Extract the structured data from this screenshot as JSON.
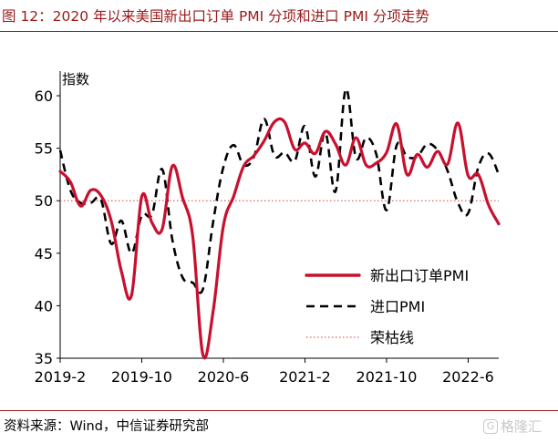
{
  "title": "图 12：2020 年以来美国新出口订单 PMI 分项和进口 PMI 分项走势",
  "source": "资料来源：Wind，中信证券研究部",
  "watermark": "格隆汇",
  "chart_data": {
    "type": "line",
    "ylabel": "指数",
    "ylim": [
      35,
      62
    ],
    "yticks": [
      35,
      40,
      45,
      50,
      55,
      60
    ],
    "xlim": [
      "2019-02",
      "2022-09"
    ],
    "xticks": [
      "2019-2",
      "2019-10",
      "2020-6",
      "2021-2",
      "2021-10",
      "2022-6"
    ],
    "grid": false,
    "legend_position": "right-middle",
    "colors": {
      "export": "#c8102e",
      "import": "#000000",
      "reference": "#e06060",
      "title": "#9b1a1a"
    },
    "series": [
      {
        "name": "新出口订单PMI",
        "style": "solid",
        "x": [
          "2019-02",
          "2019-03",
          "2019-04",
          "2019-05",
          "2019-06",
          "2019-07",
          "2019-08",
          "2019-09",
          "2019-10",
          "2019-11",
          "2019-12",
          "2020-01",
          "2020-02",
          "2020-03",
          "2020-04",
          "2020-05",
          "2020-06",
          "2020-07",
          "2020-08",
          "2020-09",
          "2020-10",
          "2020-11",
          "2020-12",
          "2021-01",
          "2021-02",
          "2021-03",
          "2021-04",
          "2021-05",
          "2021-06",
          "2021-07",
          "2021-08",
          "2021-09",
          "2021-10",
          "2021-11",
          "2021-12",
          "2022-01",
          "2022-02",
          "2022-03",
          "2022-04",
          "2022-05",
          "2022-06",
          "2022-07",
          "2022-08",
          "2022-09"
        ],
        "values": [
          52.8,
          51.8,
          49.5,
          51.0,
          50.5,
          48.1,
          43.3,
          41.0,
          50.4,
          47.9,
          47.3,
          53.3,
          50.3,
          46.6,
          35.3,
          39.5,
          47.6,
          50.4,
          53.3,
          54.3,
          55.7,
          57.5,
          57.5,
          54.9,
          55.5,
          54.5,
          56.6,
          55.4,
          53.4,
          56.0,
          53.4,
          53.6,
          54.6,
          57.3,
          52.5,
          54.4,
          53.2,
          54.7,
          53.5,
          57.4,
          52.4,
          52.5,
          49.6,
          47.8
        ]
      },
      {
        "name": "进口PMI",
        "style": "dashed",
        "x": [
          "2019-02",
          "2019-03",
          "2019-04",
          "2019-05",
          "2019-06",
          "2019-07",
          "2019-08",
          "2019-09",
          "2019-10",
          "2019-11",
          "2019-12",
          "2020-01",
          "2020-02",
          "2020-03",
          "2020-04",
          "2020-05",
          "2020-06",
          "2020-07",
          "2020-08",
          "2020-09",
          "2020-10",
          "2020-11",
          "2020-12",
          "2021-01",
          "2021-02",
          "2021-03",
          "2021-04",
          "2021-05",
          "2021-06",
          "2021-07",
          "2021-08",
          "2021-09",
          "2021-10",
          "2021-11",
          "2021-12",
          "2022-01",
          "2022-02",
          "2022-03",
          "2022-04",
          "2022-05",
          "2022-06",
          "2022-07",
          "2022-08",
          "2022-09"
        ],
        "values": [
          54.8,
          51.0,
          49.8,
          49.8,
          50.1,
          45.9,
          48.1,
          45.0,
          48.6,
          48.7,
          53.0,
          46.3,
          42.7,
          42.2,
          41.6,
          48.0,
          53.2,
          55.3,
          53.4,
          54.2,
          57.8,
          54.3,
          54.6,
          53.8,
          57.1,
          52.3,
          56.5,
          50.9,
          60.6,
          54.1,
          56.0,
          54.4,
          49.1,
          55.3,
          54.2,
          54.2,
          55.4,
          54.8,
          52.8,
          49.8,
          48.8,
          53.2,
          54.5,
          52.5
        ]
      },
      {
        "name": "荣枯线",
        "style": "dotted",
        "x": [
          "2019-02",
          "2022-09"
        ],
        "values": [
          50,
          50
        ]
      }
    ]
  }
}
